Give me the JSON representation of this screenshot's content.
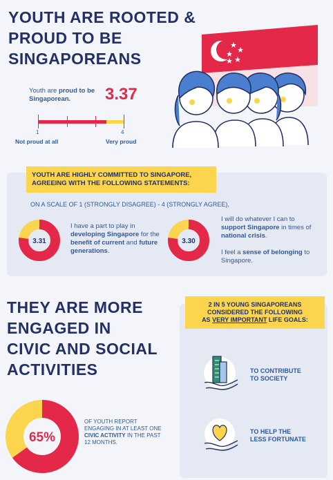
{
  "section1": {
    "title_lines": [
      "YOUTH ARE ROOTED &",
      "PROUD TO BE",
      "SINGAPOREANS"
    ],
    "proud_text_pre": "Youth are ",
    "proud_text_bold": "proud to be Singaporean.",
    "score": "3.37",
    "score_fraction": 0.79,
    "scale_min": "1",
    "scale_max": "4",
    "label_min": "Not proud at all",
    "label_max": "Very proud"
  },
  "section2": {
    "banner_line1": "YOUTH ARE HIGHLY COMMITTED TO SINGAPORE,",
    "banner_line2": "AGREEING WITH THE FOLLOWING STATEMENTS:",
    "scale_text": "ON A SCALE OF 1 (STRONGLY DISAGREE) - 4 (STRONGLY AGREE),",
    "stat1": {
      "value": "3.31",
      "fraction": 0.77,
      "t1": "I have a part to play in ",
      "t2": "developing Singapore",
      "t3": " for the ",
      "t4": "benefit of current",
      "t5": " and ",
      "t6": "future generations",
      "t7": "."
    },
    "stat2": {
      "value": "3.30",
      "fraction": 0.77,
      "t1": "I will do whatever I can to ",
      "t2": "support Singapore",
      "t3": " in times of ",
      "t4": "national crisis",
      "t5": ".",
      "u1": "I feel a ",
      "u2": "sense of belonging",
      "u3": " to Singapore."
    }
  },
  "section3": {
    "title_lines": [
      "THEY ARE MORE",
      "ENGAGED IN",
      "CIVIC AND SOCIAL",
      "ACTIVITIES"
    ],
    "pct": "65%",
    "pct_fraction": 0.65,
    "pct_text_pre": "OF YOUTH REPORT ENGAGING IN AT LEAST ONE ",
    "pct_text_bold": "CIVIC ACTIVITY",
    "pct_text_post": " IN THE PAST 12 MONTHS.",
    "goals_line1": "2 IN 5 YOUNG SINGAPOREANS",
    "goals_line2": "CONSIDERED THE FOLLOWING",
    "goals_line3_pre": "AS ",
    "goals_line3_u": "VERY IMPORTANT",
    "goals_line3_post": " LIFE GOALS:",
    "goal1_line1": "TO CONTRIBUTE",
    "goal1_line2": "TO SOCIETY",
    "goal2_line1": "TO HELP THE",
    "goal2_line2": "LESS FORTUNATE"
  },
  "colors": {
    "red": "#e3284a",
    "yellow": "#fbd54d",
    "navy": "#233066",
    "blue": "#2c5aa0"
  },
  "icons": [
    "singapore-flag-icon",
    "youth-group-illustration",
    "building-in-hand-icon",
    "heart-in-hand-icon"
  ]
}
